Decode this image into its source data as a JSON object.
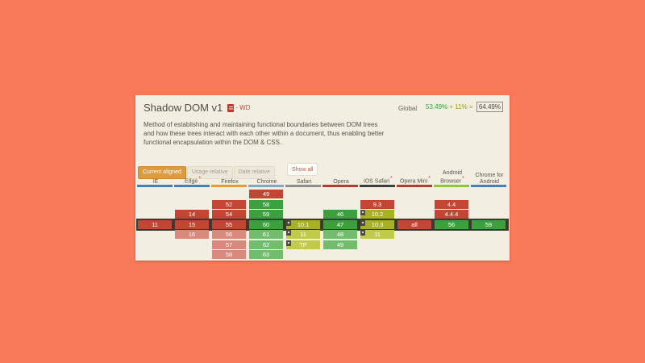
{
  "colors": {
    "page_background": "#f97a58",
    "card_background": "#f2eee1",
    "support": {
      "no": "#c34534",
      "no-future": "#d8897c",
      "yes": "#3ca03e",
      "yes-future": "#72bd6d",
      "partial": "#a7b123",
      "partial-future": "#c2cb49"
    },
    "current_row_border": "#3b3a31",
    "active_button": "#dd9b3f",
    "usage_supported": "#3aa33a",
    "usage_partial": "#98a21c"
  },
  "header": {
    "title": "Shadow DOM v1",
    "status_separator": "- ",
    "spec_status": "WD",
    "usage": {
      "label": "Global",
      "supported": "53.49%",
      "partial": "+ 11%",
      "equals": "=",
      "total": "64.49%"
    }
  },
  "description": "Method of establishing and maintaining functional boundaries between DOM trees and how these trees interact with each other within a document, thus enabling better functional encapsulation within the DOM & CSS.",
  "controls": {
    "buttons": [
      {
        "label": "Current aligned",
        "active": true
      },
      {
        "label": "Usage relative",
        "active": false
      },
      {
        "label": "Date relative",
        "active": false
      }
    ],
    "show_all": "Show all"
  },
  "table": {
    "rows": 7,
    "current_row_index": 3,
    "columns": [
      {
        "name": "IE",
        "asterisk": false,
        "underline": "#4781b4",
        "cells": [
          {
            "row": 3,
            "label": "11",
            "status": "no",
            "flag": false
          }
        ]
      },
      {
        "name": "Edge",
        "asterisk": true,
        "underline": "#4781b4",
        "cells": [
          {
            "row": 2,
            "label": "14",
            "status": "no",
            "flag": false
          },
          {
            "row": 3,
            "label": "15",
            "status": "no",
            "flag": false
          },
          {
            "row": 4,
            "label": "16",
            "status": "no-future",
            "flag": false
          }
        ]
      },
      {
        "name": "Firefox",
        "asterisk": false,
        "underline": "#e09d3c",
        "cells": [
          {
            "row": 1,
            "label": "52",
            "status": "no",
            "flag": false
          },
          {
            "row": 2,
            "label": "54",
            "status": "no",
            "flag": false
          },
          {
            "row": 3,
            "label": "55",
            "status": "no",
            "flag": false
          },
          {
            "row": 4,
            "label": "56",
            "status": "no-future",
            "flag": false
          },
          {
            "row": 5,
            "label": "57",
            "status": "no-future",
            "flag": false
          },
          {
            "row": 6,
            "label": "58",
            "status": "no-future",
            "flag": false
          }
        ]
      },
      {
        "name": "Chrome",
        "asterisk": false,
        "underline": "#87a5bd",
        "cells": [
          {
            "row": 0,
            "label": "49",
            "status": "no",
            "flag": false
          },
          {
            "row": 1,
            "label": "58",
            "status": "yes",
            "flag": false
          },
          {
            "row": 2,
            "label": "59",
            "status": "yes",
            "flag": false
          },
          {
            "row": 3,
            "label": "60",
            "status": "yes",
            "flag": false
          },
          {
            "row": 4,
            "label": "61",
            "status": "yes-future",
            "flag": false
          },
          {
            "row": 5,
            "label": "62",
            "status": "yes-future",
            "flag": false
          },
          {
            "row": 6,
            "label": "63",
            "status": "yes-future",
            "flag": false
          }
        ]
      },
      {
        "name": "Safari",
        "asterisk": false,
        "underline": "#8e8e8e",
        "cells": [
          {
            "row": 3,
            "label": "10.1",
            "status": "partial",
            "flag": true
          },
          {
            "row": 4,
            "label": "11",
            "status": "partial-future",
            "flag": true
          },
          {
            "row": 5,
            "label": "TP",
            "status": "partial-future",
            "flag": true
          }
        ]
      },
      {
        "name": "Opera",
        "asterisk": false,
        "underline": "#aa4136",
        "cells": [
          {
            "row": 2,
            "label": "46",
            "status": "yes",
            "flag": false
          },
          {
            "row": 3,
            "label": "47",
            "status": "yes",
            "flag": false
          },
          {
            "row": 4,
            "label": "48",
            "status": "yes-future",
            "flag": false
          },
          {
            "row": 5,
            "label": "49",
            "status": "yes-future",
            "flag": false
          }
        ]
      },
      {
        "name": "iOS Safari",
        "asterisk": true,
        "underline": "#3f3f3b",
        "cells": [
          {
            "row": 1,
            "label": "9.3",
            "status": "no",
            "flag": false
          },
          {
            "row": 2,
            "label": "10.2",
            "status": "partial",
            "flag": true
          },
          {
            "row": 3,
            "label": "10.3",
            "status": "partial",
            "flag": true
          },
          {
            "row": 4,
            "label": "11",
            "status": "partial-future",
            "flag": true
          }
        ]
      },
      {
        "name": "Opera Mini",
        "asterisk": true,
        "underline": "#aa4136",
        "cells": [
          {
            "row": 3,
            "label": "all",
            "status": "no",
            "flag": false
          }
        ]
      },
      {
        "name": "Android Browser",
        "asterisk": true,
        "underline": "#93c43f",
        "cells": [
          {
            "row": 1,
            "label": "4.4",
            "status": "no",
            "flag": false
          },
          {
            "row": 2,
            "label": "4.4.4",
            "status": "no",
            "flag": false
          },
          {
            "row": 3,
            "label": "56",
            "status": "yes",
            "flag": false
          }
        ]
      },
      {
        "name": "Chrome for Android",
        "asterisk": false,
        "underline": "#4781b4",
        "cells": [
          {
            "row": 3,
            "label": "59",
            "status": "yes",
            "flag": false
          }
        ]
      }
    ]
  }
}
